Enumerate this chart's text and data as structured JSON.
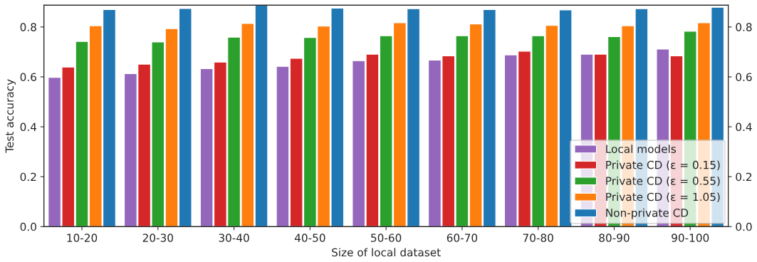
{
  "chart_data": {
    "type": "bar",
    "xlabel": "Size of local dataset",
    "ylabel": "Test accuracy",
    "categories": [
      "10-20",
      "20-30",
      "30-40",
      "40-50",
      "50-60",
      "60-70",
      "70-80",
      "80-90",
      "90-100"
    ],
    "series": [
      {
        "name": "Local models",
        "color": "#9467bd",
        "values": [
          0.598,
          0.613,
          0.633,
          0.642,
          0.665,
          0.667,
          0.688,
          0.691,
          0.711
        ]
      },
      {
        "name": "Private CD (ε = 0.15)",
        "color": "#d62728",
        "values": [
          0.639,
          0.651,
          0.659,
          0.674,
          0.691,
          0.684,
          0.703,
          0.691,
          0.684
        ]
      },
      {
        "name": "Private CD (ε = 0.55)",
        "color": "#2ca02c",
        "values": [
          0.742,
          0.74,
          0.759,
          0.758,
          0.765,
          0.765,
          0.765,
          0.761,
          0.783
        ]
      },
      {
        "name": "Private CD (ε = 1.05)",
        "color": "#ff7f0e",
        "values": [
          0.805,
          0.793,
          0.814,
          0.803,
          0.817,
          0.812,
          0.806,
          0.805,
          0.817
        ]
      },
      {
        "name": "Non-private CD",
        "color": "#1f77b4",
        "values": [
          0.87,
          0.874,
          0.887,
          0.875,
          0.873,
          0.87,
          0.868,
          0.873,
          0.879
        ]
      }
    ],
    "ylim": [
      0,
      0.887
    ],
    "yticks": [
      {
        "value": 0,
        "label": "0.0"
      },
      0.2,
      0.4,
      0.6,
      0.8
    ],
    "y2lim": [
      0,
      0.887
    ],
    "y2ticks": [
      {
        "value": 0,
        "label": "0.0"
      },
      0.2,
      0.4,
      0.6,
      0.8
    ],
    "legend": "bottom right",
    "grid": false
  }
}
